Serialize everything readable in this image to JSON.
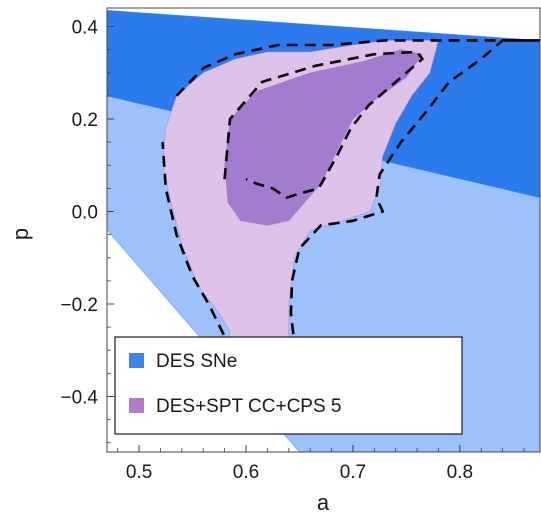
{
  "chart_data": {
    "type": "contour",
    "xlabel": "a",
    "ylabel": "p",
    "xlim": [
      0.47,
      0.875
    ],
    "ylim": [
      -0.52,
      0.44
    ],
    "xticks": [
      0.5,
      0.6,
      0.7,
      0.8
    ],
    "xtick_labels": [
      "0.5",
      "0.6",
      "0.7",
      "0.8"
    ],
    "yticks": [
      -0.4,
      -0.2,
      0.0,
      0.2,
      0.4
    ],
    "ytick_labels": [
      "−0.4",
      "−0.2",
      "0.0",
      "0.2",
      "0.4"
    ],
    "grid": false,
    "legend": {
      "placement": "bottom-left",
      "entries": [
        {
          "label": "DES SNe",
          "color": "#3a85f0"
        },
        {
          "label": "DES+SPT CC+CPS 5",
          "color": "#b07cc6"
        }
      ]
    },
    "series": [
      {
        "name": "DES SNe",
        "color": "#3a85f0",
        "regions": [
          {
            "level": "outer",
            "fill": "#9dc1fb",
            "polygon": [
              [
                0.47,
                0.25
              ],
              [
                0.875,
                0.03
              ],
              [
                0.875,
                -0.52
              ],
              [
                0.65,
                -0.52
              ],
              [
                0.47,
                -0.04
              ]
            ]
          },
          {
            "level": "inner",
            "fill": "#2c7bee",
            "polygon": [
              [
                0.47,
                0.435
              ],
              [
                0.875,
                0.37
              ],
              [
                0.875,
                0.03
              ],
              [
                0.47,
                0.25
              ]
            ]
          }
        ]
      },
      {
        "name": "DES+SPT CC+CPS 5",
        "color": "#b07cc6",
        "regions": [
          {
            "level": "outer",
            "fill": "#ddc3ea",
            "polygon": [
              [
                0.535,
                0.25
              ],
              [
                0.56,
                0.3
              ],
              [
                0.59,
                0.33
              ],
              [
                0.62,
                0.345
              ],
              [
                0.66,
                0.345
              ],
              [
                0.7,
                0.36
              ],
              [
                0.73,
                0.37
              ],
              [
                0.765,
                0.37
              ],
              [
                0.78,
                0.37
              ],
              [
                0.772,
                0.3
              ],
              [
                0.755,
                0.25
              ],
              [
                0.74,
                0.19
              ],
              [
                0.728,
                0.12
              ],
              [
                0.725,
                0.05
              ],
              [
                0.716,
                0.0
              ],
              [
                0.69,
                -0.02
              ],
              [
                0.66,
                -0.04
              ],
              [
                0.645,
                -0.1
              ],
              [
                0.64,
                -0.2
              ],
              [
                0.64,
                -0.27
              ],
              [
                0.65,
                -0.37
              ],
              [
                0.635,
                -0.4
              ],
              [
                0.612,
                -0.33
              ],
              [
                0.583,
                -0.29
              ],
              [
                0.585,
                -0.26
              ],
              [
                0.575,
                -0.22
              ],
              [
                0.555,
                -0.16
              ],
              [
                0.54,
                -0.07
              ],
              [
                0.53,
                0.02
              ],
              [
                0.522,
                0.1
              ],
              [
                0.525,
                0.18
              ]
            ]
          },
          {
            "level": "inner",
            "fill": "#a27ccf",
            "polygon": [
              [
                0.58,
                0.1
              ],
              [
                0.585,
                0.2
              ],
              [
                0.61,
                0.26
              ],
              [
                0.66,
                0.3
              ],
              [
                0.71,
                0.325
              ],
              [
                0.745,
                0.35
              ],
              [
                0.765,
                0.34
              ],
              [
                0.75,
                0.29
              ],
              [
                0.72,
                0.24
              ],
              [
                0.7,
                0.2
              ],
              [
                0.685,
                0.13
              ],
              [
                0.67,
                0.06
              ],
              [
                0.655,
                0.02
              ],
              [
                0.64,
                -0.02
              ],
              [
                0.62,
                -0.03
              ],
              [
                0.595,
                -0.02
              ],
              [
                0.583,
                0.02
              ]
            ]
          }
        ],
        "contour_lines": [
          {
            "level": "outer",
            "style": "dashed",
            "points": [
              [
                0.535,
                0.25
              ],
              [
                0.56,
                0.31
              ],
              [
                0.59,
                0.34
              ],
              [
                0.63,
                0.36
              ],
              [
                0.68,
                0.36
              ],
              [
                0.73,
                0.37
              ],
              [
                0.875,
                0.37
              ],
              [
                0.875,
                0.37
              ],
              [
                0.84,
                0.37
              ],
              [
                0.82,
                0.33
              ],
              [
                0.79,
                0.28
              ],
              [
                0.77,
                0.22
              ],
              [
                0.745,
                0.15
              ],
              [
                0.725,
                0.08
              ],
              [
                0.722,
                0.03
              ],
              [
                0.728,
                0.0
              ],
              [
                0.7,
                -0.02
              ],
              [
                0.67,
                -0.03
              ],
              [
                0.65,
                -0.08
              ],
              [
                0.643,
                -0.15
              ],
              [
                0.642,
                -0.22
              ],
              [
                0.645,
                -0.28
              ],
              [
                0.61,
                -0.285
              ],
              [
                0.58,
                -0.27
              ],
              [
                0.565,
                -0.2
              ],
              [
                0.55,
                -0.14
              ],
              [
                0.535,
                -0.05
              ],
              [
                0.525,
                0.05
              ],
              [
                0.522,
                0.15
              ]
            ]
          },
          {
            "level": "inner",
            "style": "dashed",
            "points": [
              [
                0.58,
                0.07
              ],
              [
                0.585,
                0.2
              ],
              [
                0.615,
                0.28
              ],
              [
                0.665,
                0.315
              ],
              [
                0.72,
                0.34
              ],
              [
                0.76,
                0.345
              ],
              [
                0.765,
                0.33
              ],
              [
                0.74,
                0.28
              ],
              [
                0.715,
                0.23
              ],
              [
                0.698,
                0.18
              ],
              [
                0.685,
                0.12
              ],
              [
                0.668,
                0.05
              ],
              [
                0.652,
                0.04
              ],
              [
                0.638,
                0.03
              ],
              [
                0.625,
                0.05
              ],
              [
                0.61,
                0.06
              ],
              [
                0.6,
                0.07
              ]
            ]
          }
        ]
      }
    ]
  }
}
